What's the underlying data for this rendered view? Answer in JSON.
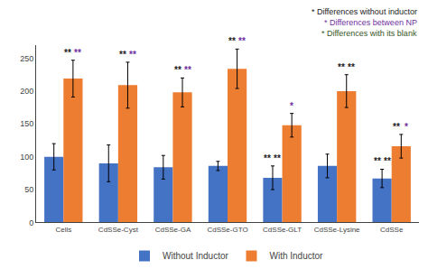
{
  "chart_data": {
    "type": "bar",
    "categories": [
      "Cells",
      "CdSSe-Cyst",
      "CdSSe-GA",
      "CdSSe-GTO",
      "CdSSe-GLT",
      "CdSSe-Lysine",
      "CdSSe"
    ],
    "series": [
      {
        "name": "Without Inductor",
        "color": "#4472C4",
        "values": [
          100,
          90,
          84,
          86,
          68,
          86,
          67
        ],
        "errors": [
          20,
          28,
          18,
          7,
          18,
          18,
          14
        ]
      },
      {
        "name": "With Inductor",
        "color": "#ED7D31",
        "values": [
          219,
          209,
          198,
          234,
          148,
          200,
          116
        ],
        "errors": [
          28,
          35,
          22,
          30,
          18,
          25,
          18
        ]
      }
    ],
    "ylim": [
      0,
      270
    ],
    "yticks": [
      0,
      50,
      100,
      150,
      200,
      250
    ],
    "grid": false,
    "legend": "bottom",
    "annotations": [
      {
        "text": "**",
        "color": "#222222",
        "category": "Cells",
        "series": "With Inductor"
      },
      {
        "text": "**",
        "color": "#7030A0",
        "category": "Cells",
        "series": "With Inductor"
      },
      {
        "text": "**",
        "color": "#222222",
        "category": "CdSSe-Cyst",
        "series": "With Inductor"
      },
      {
        "text": "**",
        "color": "#7030A0",
        "category": "CdSSe-Cyst",
        "series": "With Inductor"
      },
      {
        "text": "**",
        "color": "#222222",
        "category": "CdSSe-GA",
        "series": "With Inductor"
      },
      {
        "text": "**",
        "color": "#7030A0",
        "category": "CdSSe-GA",
        "series": "With Inductor"
      },
      {
        "text": "**",
        "color": "#222222",
        "category": "CdSSe-GTO",
        "series": "With Inductor"
      },
      {
        "text": "**",
        "color": "#7030A0",
        "category": "CdSSe-GTO",
        "series": "With Inductor"
      },
      {
        "text": "**",
        "color": "#222222",
        "category": "CdSSe-GLT",
        "series": "Without Inductor"
      },
      {
        "text": "**",
        "color": "#222222",
        "category": "CdSSe-GLT",
        "series": "Without Inductor"
      },
      {
        "text": "*",
        "color": "#7030A0",
        "category": "CdSSe-GLT",
        "series": "With Inductor"
      },
      {
        "text": "**",
        "color": "#222222",
        "category": "CdSSe-Lysine",
        "series": "With Inductor"
      },
      {
        "text": "**",
        "color": "#222222",
        "category": "CdSSe-Lysine",
        "series": "With Inductor"
      },
      {
        "text": "**",
        "color": "#222222",
        "category": "CdSSe",
        "series": "Without Inductor"
      },
      {
        "text": "**",
        "color": "#222222",
        "category": "CdSSe",
        "series": "Without Inductor"
      },
      {
        "text": "**",
        "color": "#222222",
        "category": "CdSSe",
        "series": "With Inductor"
      },
      {
        "text": "*",
        "color": "#7030A0",
        "category": "CdSSe",
        "series": "With Inductor"
      },
      {
        "text": "* Differences without inductor",
        "color": "#222222"
      },
      {
        "text": "* Differences between NP",
        "color": "#7030A0"
      },
      {
        "text": "* Differences with its blank",
        "color": "#375623"
      }
    ]
  }
}
